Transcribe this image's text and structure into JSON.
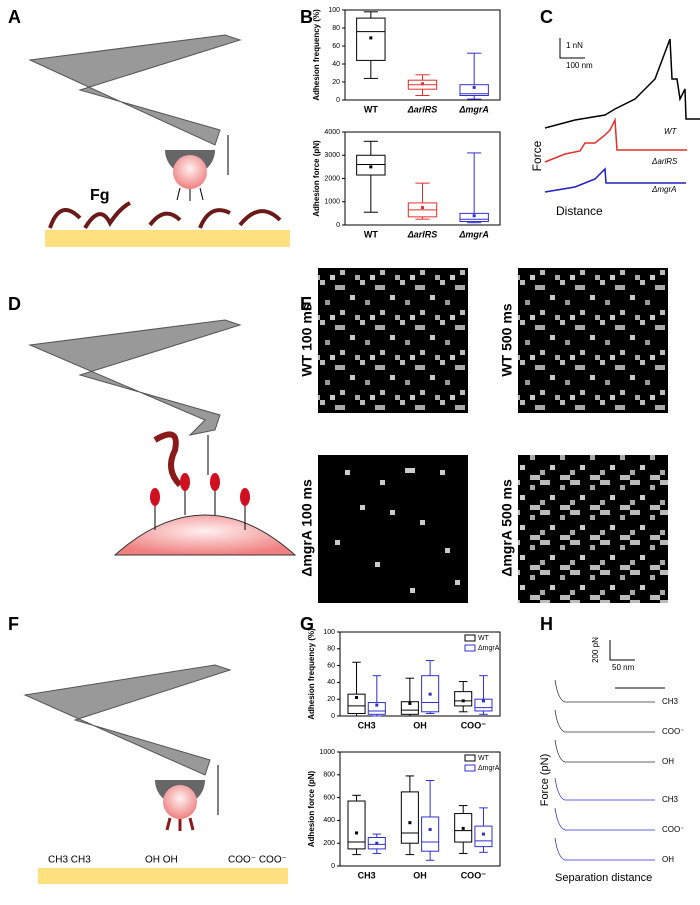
{
  "panels": {
    "A": {
      "letter": "A",
      "label": "Fg"
    },
    "B": {
      "letter": "B"
    },
    "C": {
      "letter": "C",
      "scale_force": "1 nN",
      "scale_distance": "100 nm",
      "curves": [
        "WT",
        "ΔarlRS",
        "ΔmgrA"
      ],
      "ylabel": "Force",
      "xlabel": "Distance"
    },
    "D": {
      "letter": "D"
    },
    "E": {
      "letter": "E",
      "maps": [
        "WT 100 ms",
        "WT 500 ms",
        "ΔmgrA 100 ms",
        "ΔmgrA 500 ms"
      ]
    },
    "F": {
      "letter": "F",
      "surfaces": [
        "CH3 CH3",
        "OH OH",
        "COO⁻ COO⁻"
      ]
    },
    "G": {
      "letter": "G"
    },
    "H": {
      "letter": "H",
      "scale_force": "200 pN",
      "scale_distance": "50 nm",
      "ylabel": "Force (pN)",
      "xlabel": "Separation distance",
      "curves": [
        "CH3",
        "COO⁻",
        "OH",
        "CH3",
        "COO⁻",
        "OH"
      ]
    }
  },
  "chart_data": [
    {
      "type": "box",
      "ylabel": "Adhesion frequency (%)",
      "categories": [
        "WT",
        "ΔarlRS",
        "ΔmgrA"
      ],
      "colors": [
        "#000000",
        "#e0302a",
        "#3030d0"
      ],
      "boxes": [
        {
          "min": 24,
          "q1": 44,
          "median": 76,
          "q3": 91,
          "max": 98,
          "mean": 69
        },
        {
          "min": 5,
          "q1": 12,
          "median": 17,
          "q3": 22,
          "max": 28,
          "mean": 18
        },
        {
          "min": 1,
          "q1": 5,
          "median": 7,
          "q3": 17,
          "max": 52,
          "mean": 14
        }
      ],
      "ylim": [
        0,
        100
      ],
      "yticks": [
        0,
        20,
        40,
        60,
        80,
        100
      ]
    },
    {
      "type": "box",
      "ylabel": "Adhesion force (pN)",
      "categories": [
        "WT",
        "ΔarlRS",
        "ΔmgrA"
      ],
      "colors": [
        "#000000",
        "#e0302a",
        "#3030d0"
      ],
      "boxes": [
        {
          "min": 550,
          "q1": 2150,
          "median": 2600,
          "q3": 3000,
          "max": 3600,
          "mean": 2500
        },
        {
          "min": 250,
          "q1": 350,
          "median": 650,
          "q3": 950,
          "max": 1800,
          "mean": 750
        },
        {
          "min": 100,
          "q1": 150,
          "median": 250,
          "q3": 500,
          "max": 3100,
          "mean": 400
        }
      ],
      "ylim": [
        0,
        4000
      ],
      "yticks": [
        0,
        1000,
        2000,
        3000,
        4000
      ]
    },
    {
      "type": "box",
      "ylabel": "Adhesion frequency (%)",
      "categories": [
        "CH3",
        "OH",
        "COO⁻"
      ],
      "series": [
        {
          "name": "WT",
          "color": "#000000",
          "boxes": [
            {
              "min": 0,
              "q1": 3,
              "median": 12,
              "q3": 26,
              "max": 64,
              "mean": 22
            },
            {
              "min": 0,
              "q1": 2,
              "median": 7,
              "q3": 17,
              "max": 45,
              "mean": 15
            },
            {
              "min": 5,
              "q1": 12,
              "median": 18,
              "q3": 29,
              "max": 41,
              "mean": 18
            }
          ]
        },
        {
          "name": "ΔmgrA",
          "color": "#3030d0",
          "boxes": [
            {
              "min": 0,
              "q1": 2,
              "median": 6,
              "q3": 16,
              "max": 48,
              "mean": 13
            },
            {
              "min": 3,
              "q1": 5,
              "median": 16,
              "q3": 48,
              "max": 66,
              "mean": 26
            },
            {
              "min": 2,
              "q1": 6,
              "median": 10,
              "q3": 20,
              "max": 48,
              "mean": 18
            }
          ]
        }
      ],
      "ylim": [
        0,
        100
      ],
      "yticks": [
        0,
        20,
        40,
        60,
        80,
        100
      ]
    },
    {
      "type": "box",
      "ylabel": "Adhesion force (pN)",
      "categories": [
        "CH3",
        "OH",
        "COO⁻"
      ],
      "series": [
        {
          "name": "WT",
          "color": "#000000",
          "boxes": [
            {
              "min": 100,
              "q1": 150,
              "median": 210,
              "q3": 570,
              "max": 620,
              "mean": 290
            },
            {
              "min": 100,
              "q1": 200,
              "median": 290,
              "q3": 650,
              "max": 790,
              "mean": 380
            },
            {
              "min": 110,
              "q1": 210,
              "median": 310,
              "q3": 460,
              "max": 530,
              "mean": 330
            }
          ]
        },
        {
          "name": "ΔmgrA",
          "color": "#3030d0",
          "boxes": [
            {
              "min": 110,
              "q1": 150,
              "median": 190,
              "q3": 250,
              "max": 280,
              "mean": 200
            },
            {
              "min": 50,
              "q1": 130,
              "median": 210,
              "q3": 430,
              "max": 750,
              "mean": 320
            },
            {
              "min": 120,
              "q1": 170,
              "median": 220,
              "q3": 350,
              "max": 510,
              "mean": 280
            }
          ]
        }
      ],
      "ylim": [
        0,
        1000
      ],
      "yticks": [
        0,
        200,
        400,
        600,
        800,
        1000
      ]
    }
  ]
}
